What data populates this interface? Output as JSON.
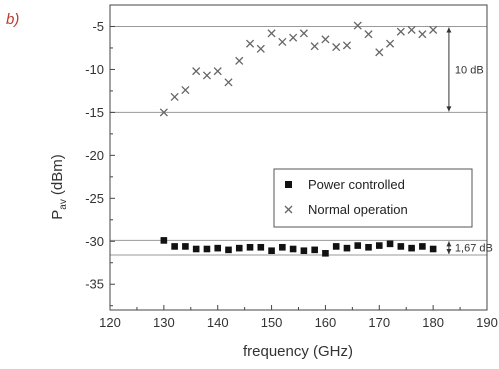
{
  "chart_data": {
    "type": "scatter",
    "panel_label": "b)",
    "title": "",
    "xlabel": "frequency (GHz)",
    "ylabel_main": "P",
    "ylabel_sub": "av",
    "ylabel_unit": "(dBm)",
    "xlim": [
      120,
      190
    ],
    "ylim": [
      -38,
      -2.5
    ],
    "x_ticks": [
      120,
      130,
      140,
      150,
      160,
      170,
      180,
      190
    ],
    "y_ticks": [
      -5,
      -10,
      -15,
      -20,
      -25,
      -30,
      -35
    ],
    "x_tick_labels": [
      "120",
      "130",
      "140",
      "150",
      "160",
      "170",
      "180",
      "190"
    ],
    "y_tick_labels": [
      "-5",
      "-10",
      "-15",
      "-20",
      "-25",
      "-30",
      "-35"
    ],
    "grid": false,
    "legend_position": "center-right",
    "series": [
      {
        "name": "Power controlled",
        "marker": "square",
        "color": "#111111",
        "x": [
          130,
          132,
          134,
          136,
          138,
          140,
          142,
          144,
          146,
          148,
          150,
          152,
          154,
          156,
          158,
          160,
          162,
          164,
          166,
          168,
          170,
          172,
          174,
          176,
          178,
          180
        ],
        "y": [
          -29.9,
          -30.6,
          -30.6,
          -30.9,
          -30.9,
          -30.8,
          -31.0,
          -30.8,
          -30.7,
          -30.7,
          -31.1,
          -30.7,
          -30.9,
          -31.1,
          -31.0,
          -31.4,
          -30.6,
          -30.8,
          -30.5,
          -30.7,
          -30.5,
          -30.3,
          -30.6,
          -30.8,
          -30.6,
          -30.9
        ]
      },
      {
        "name": "Normal operation",
        "marker": "x",
        "color": "#666666",
        "x": [
          130,
          132,
          134,
          136,
          138,
          140,
          142,
          144,
          146,
          148,
          150,
          152,
          154,
          156,
          158,
          160,
          162,
          164,
          166,
          168,
          170,
          172,
          174,
          176,
          178,
          180
        ],
        "y": [
          -15.0,
          -13.2,
          -12.4,
          -10.2,
          -10.7,
          -10.2,
          -11.5,
          -9.0,
          -7.0,
          -7.6,
          -5.8,
          -6.8,
          -6.3,
          -5.8,
          -7.3,
          -6.5,
          -7.4,
          -7.2,
          -4.9,
          -5.9,
          -8.0,
          -7.0,
          -5.6,
          -5.4,
          -5.9,
          -5.4
        ]
      }
    ],
    "reference_lines": [
      -5,
      -15,
      -29.9,
      -31.6
    ],
    "annotations": [
      {
        "text": "10 dB",
        "from": -5,
        "to": -15,
        "x": 182
      },
      {
        "text": "1,67 dB",
        "from": -29.9,
        "to": -31.6,
        "x": 182
      }
    ]
  }
}
